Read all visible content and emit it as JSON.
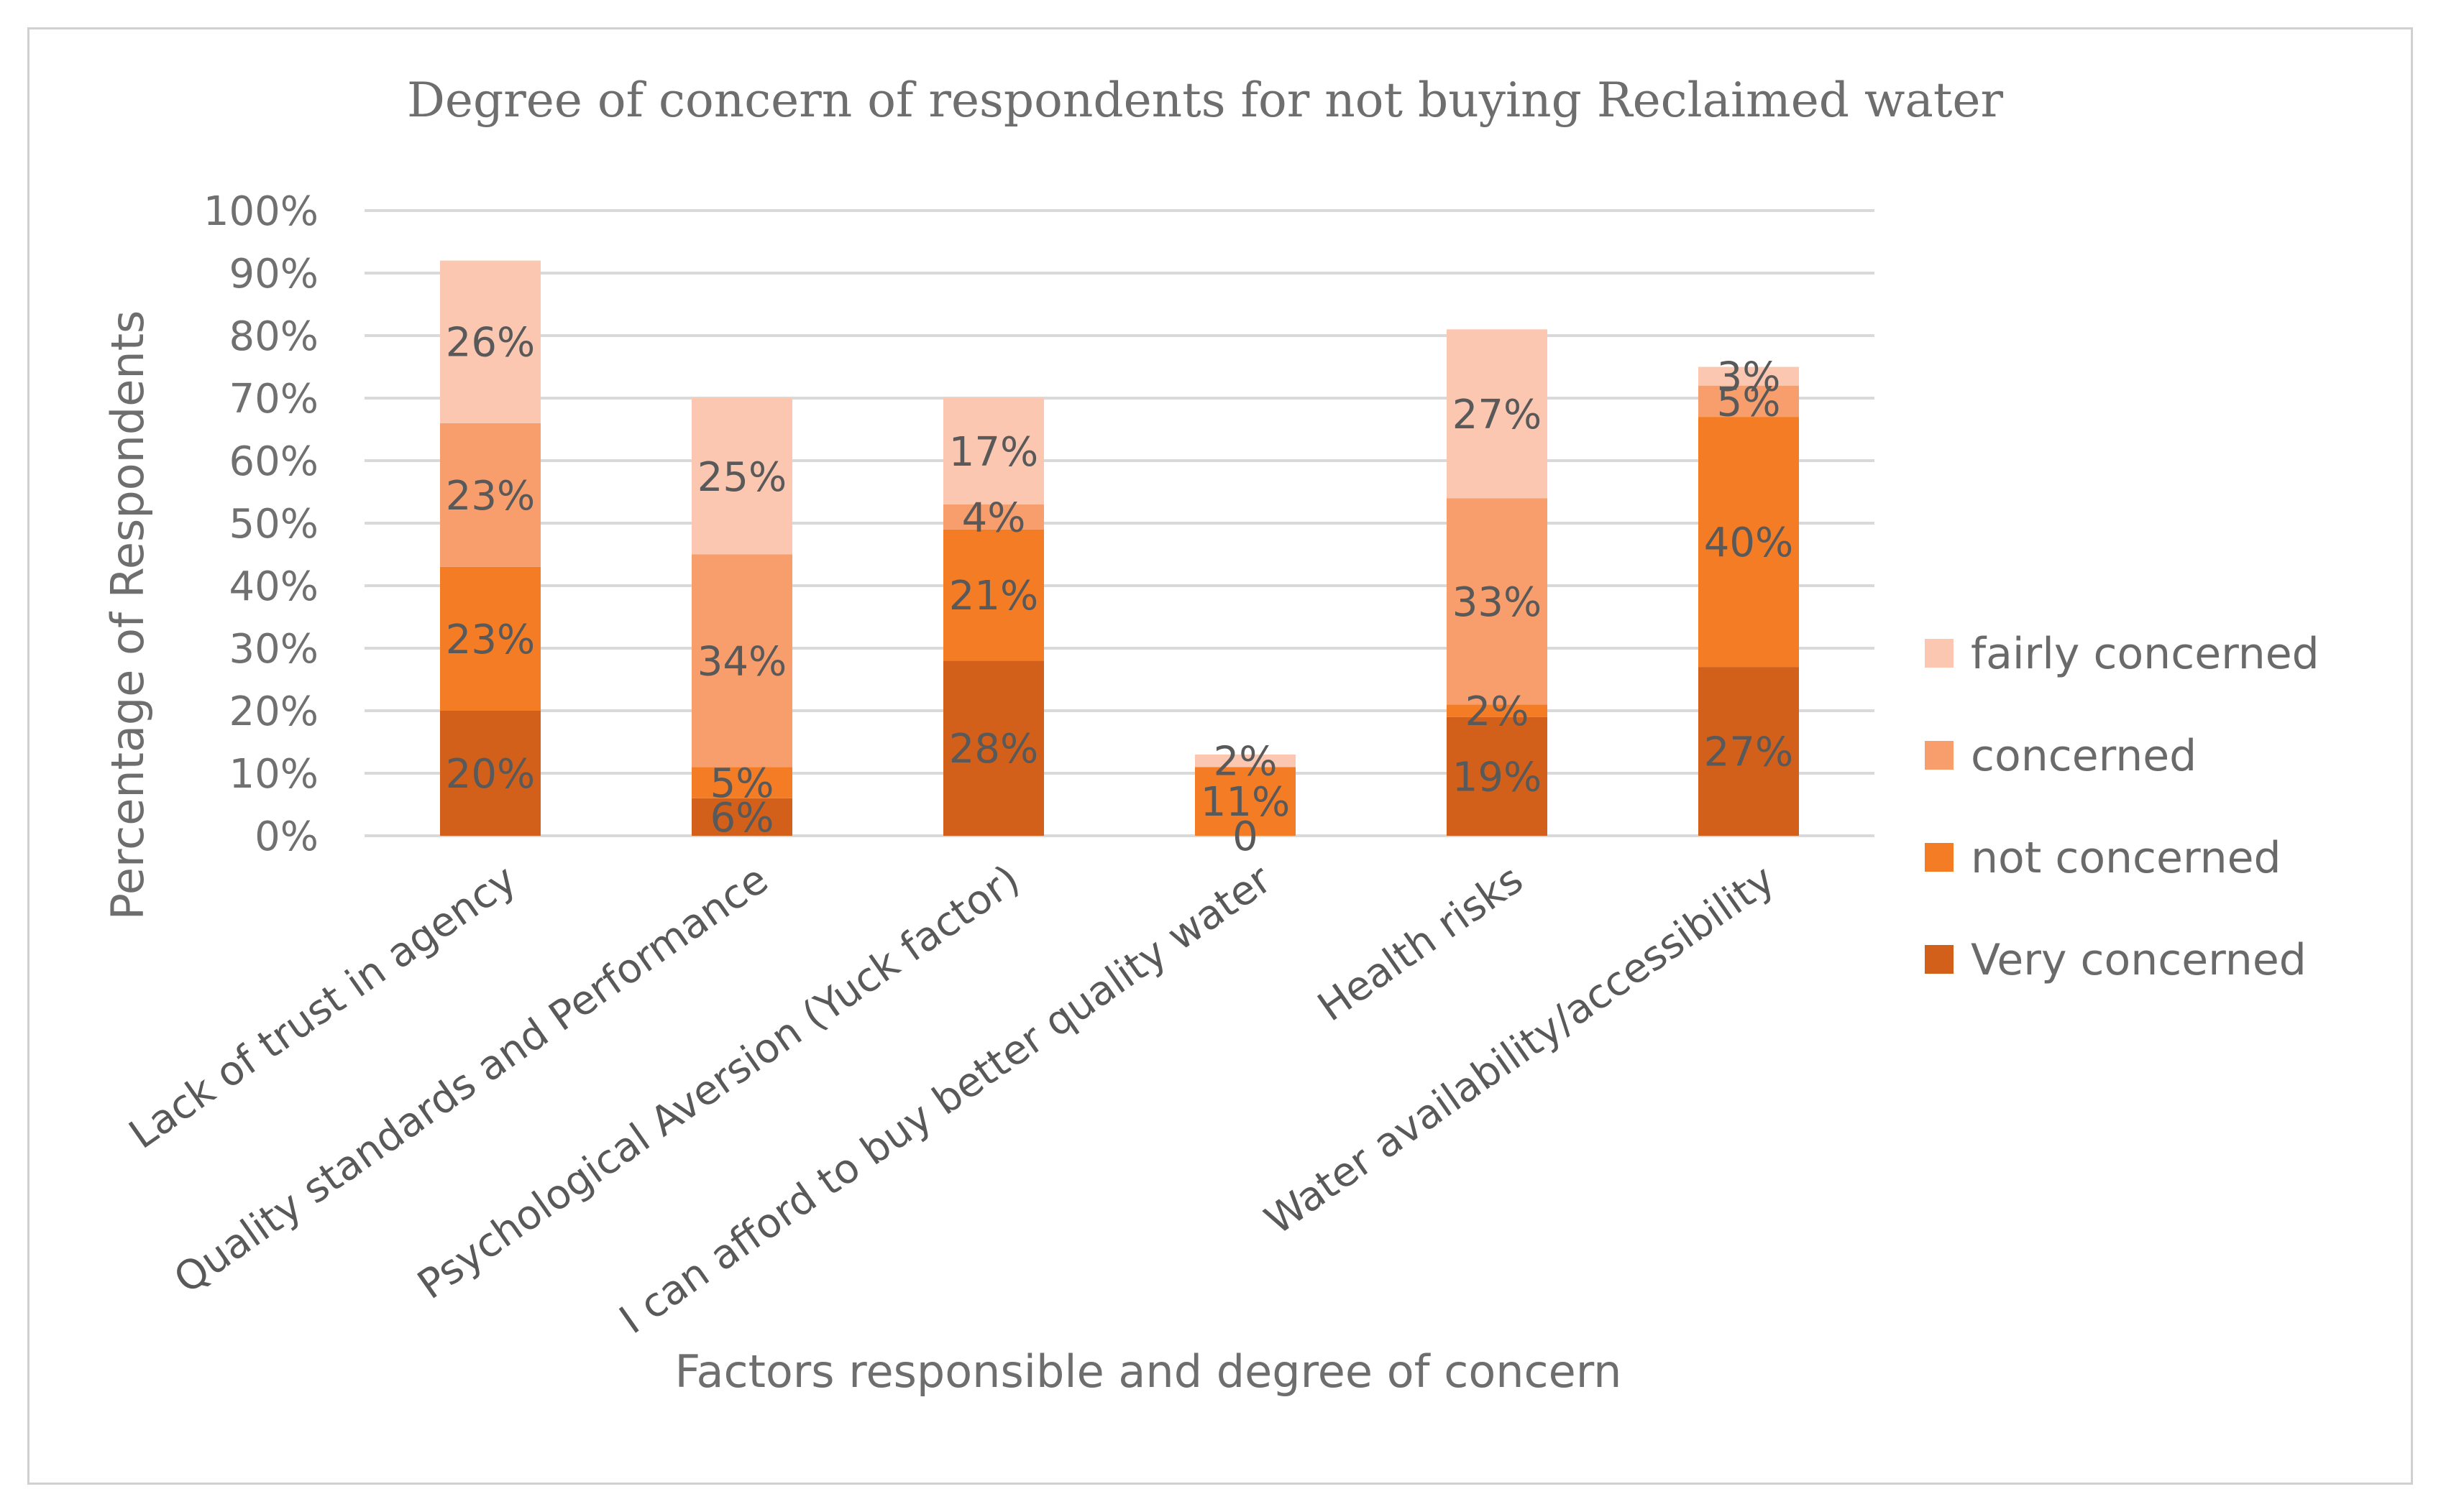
{
  "chart_data": {
    "type": "bar",
    "stacked": true,
    "title": "Degree of concern of respondents for not buying Reclaimed water",
    "xlabel": "Factors responsible and degree of concern",
    "ylabel": "Percentage of Respondents",
    "ylim": [
      0,
      100
    ],
    "yticks": [
      "0%",
      "10%",
      "20%",
      "30%",
      "40%",
      "50%",
      "60%",
      "70%",
      "80%",
      "90%",
      "100%"
    ],
    "grid": true,
    "legend_position": "right",
    "categories": [
      "Lack of trust in agency",
      "Quality standards and Performance",
      "Psychological Aversion (Yuck factor)",
      "I can afford to buy better quality water",
      "Health risks",
      "Water availability/accessibility"
    ],
    "series": [
      {
        "name": "Very concerned",
        "color": "#d2601a",
        "values": [
          20,
          6,
          28,
          0,
          19,
          27
        ],
        "labels": [
          "20%",
          "6%",
          "28%",
          "0",
          "19%",
          "27%"
        ]
      },
      {
        "name": "not concerned",
        "color": "#f47c25",
        "values": [
          23,
          5,
          21,
          11,
          2,
          40
        ],
        "labels": [
          "23%",
          "5%",
          "21%",
          "11%",
          "2%",
          "40%"
        ]
      },
      {
        "name": "concerned",
        "color": "#f89e6c",
        "values": [
          23,
          34,
          4,
          0,
          33,
          5
        ],
        "labels": [
          "23%",
          "34%",
          "4%",
          "",
          "33%",
          "5%"
        ]
      },
      {
        "name": "fairly concerned",
        "color": "#fbc7b1",
        "values": [
          26,
          25,
          17,
          2,
          27,
          3
        ],
        "labels": [
          "26%",
          "25%",
          "17%",
          "2%",
          "27%",
          "3%"
        ]
      }
    ]
  }
}
